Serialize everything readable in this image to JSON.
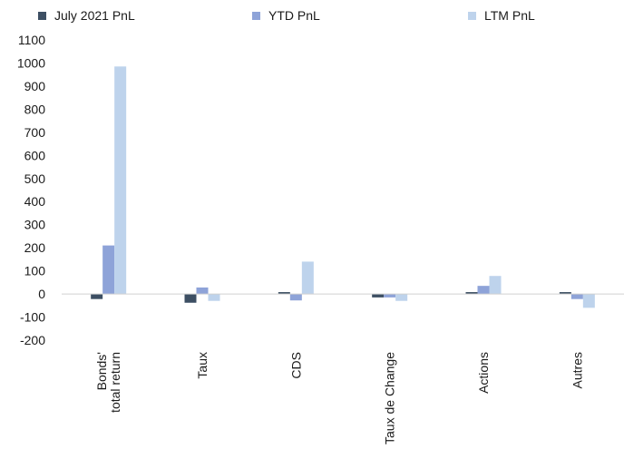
{
  "chart_data": {
    "type": "bar",
    "categories": [
      "Bonds' total return",
      "Taux",
      "CDS",
      "Taux de Change",
      "Actions",
      "Autres"
    ],
    "category_lines": [
      [
        "Bonds'",
        "total return"
      ],
      [
        "Taux"
      ],
      [
        "CDS"
      ],
      [
        "Taux de Change"
      ],
      [
        "Actions"
      ],
      [
        "Autres"
      ]
    ],
    "series": [
      {
        "name": "July 2021 PnL",
        "color": "#3d4f63",
        "values": [
          -22,
          -38,
          8,
          -15,
          8,
          8
        ]
      },
      {
        "name": "YTD PnL",
        "color": "#8ea3d8",
        "values": [
          210,
          28,
          -28,
          -15,
          35,
          -22
        ]
      },
      {
        "name": "LTM PnL",
        "color": "#bed3ec",
        "values": [
          985,
          -30,
          140,
          -30,
          78,
          -60
        ]
      }
    ],
    "title": "",
    "xlabel": "",
    "ylabel": "",
    "ylim": [
      -200,
      1100
    ],
    "yticks": [
      -200,
      -100,
      0,
      100,
      200,
      300,
      400,
      500,
      600,
      700,
      800,
      900,
      1000,
      1100
    ],
    "grid": false,
    "legend_position": "top"
  }
}
